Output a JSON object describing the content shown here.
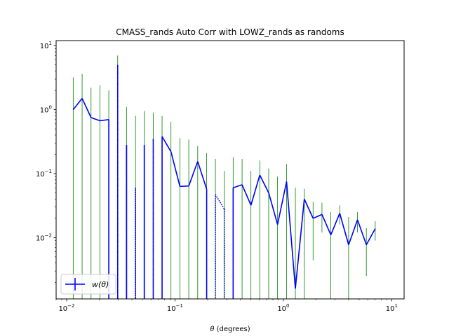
{
  "chart_data": {
    "type": "line",
    "title": "CMASS_rands Auto Corr with LOWZ_rands as randoms",
    "xlabel": "θ (degrees)",
    "ylabel": "",
    "xscale": "log",
    "yscale": "log",
    "xlim": [
      0.008,
      13
    ],
    "ylim": [
      0.0011,
      12
    ],
    "grid": false,
    "legend_position": "lower-left",
    "x_tick_labels": [
      {
        "value": 0.01,
        "base": "10",
        "exp": "−2"
      },
      {
        "value": 0.1,
        "base": "10",
        "exp": "−1"
      },
      {
        "value": 1,
        "base": "10",
        "exp": "0"
      },
      {
        "value": 10,
        "base": "10",
        "exp": "1"
      }
    ],
    "y_tick_labels": [
      {
        "value": 0.01,
        "base": "10",
        "exp": "−2"
      },
      {
        "value": 0.1,
        "base": "10",
        "exp": "−1"
      },
      {
        "value": 1,
        "base": "10",
        "exp": "0"
      },
      {
        "value": 10,
        "base": "10",
        "exp": "1"
      }
    ],
    "series": [
      {
        "name": "w(θ)",
        "color": "#0000ff",
        "errorbar_color": "#008000",
        "points": [
          {
            "x": 0.0115,
            "y": 1.0,
            "ylo": 0.0011,
            "yhi": 3.2
          },
          {
            "x": 0.0139,
            "y": 1.5,
            "ylo": 0.0011,
            "yhi": 3.6
          },
          {
            "x": 0.0168,
            "y": 0.75,
            "ylo": 0.0011,
            "yhi": 2.2
          },
          {
            "x": 0.0203,
            "y": 0.67,
            "ylo": 0.0011,
            "yhi": 2.4
          },
          {
            "x": 0.0245,
            "y": 0.7,
            "ylo": 0.0011,
            "yhi": 2.0
          },
          {
            "x": 0.0296,
            "y": -5.0,
            "ylo": 0.0011,
            "yhi": 7.0
          },
          {
            "x": 0.0357,
            "y": 0.28,
            "ylo": 0.0011,
            "yhi": 1.1
          },
          {
            "x": 0.0432,
            "y": -0.06,
            "ylo": 0.0011,
            "yhi": 0.8
          },
          {
            "x": 0.0521,
            "y": 0.28,
            "ylo": 0.0011,
            "yhi": 0.95
          },
          {
            "x": 0.063,
            "y": -0.35,
            "ylo": 0.0011,
            "yhi": 0.9
          },
          {
            "x": 0.076,
            "y": 0.38,
            "ylo": 0.0011,
            "yhi": 0.8
          },
          {
            "x": 0.0918,
            "y": 0.22,
            "ylo": 0.0011,
            "yhi": 0.65
          },
          {
            "x": 0.111,
            "y": 0.063,
            "ylo": 0.0011,
            "yhi": 0.36
          },
          {
            "x": 0.134,
            "y": 0.064,
            "ylo": 0.0011,
            "yhi": 0.34
          },
          {
            "x": 0.162,
            "y": 0.155,
            "ylo": 0.0011,
            "yhi": 0.27
          },
          {
            "x": 0.196,
            "y": 0.057,
            "ylo": 0.0011,
            "yhi": 0.21
          },
          {
            "x": 0.236,
            "y": -0.047,
            "ylo": 0.0011,
            "yhi": 0.17
          },
          {
            "x": 0.285,
            "y": -0.028,
            "ylo": 0.0011,
            "yhi": 0.11
          },
          {
            "x": 0.344,
            "y": 0.06,
            "ylo": 0.0011,
            "yhi": 0.18
          },
          {
            "x": 0.416,
            "y": 0.067,
            "ylo": 0.0011,
            "yhi": 0.17
          },
          {
            "x": 0.502,
            "y": 0.032,
            "ylo": 0.0011,
            "yhi": 0.11
          },
          {
            "x": 0.606,
            "y": 0.095,
            "ylo": 0.0011,
            "yhi": 0.16
          },
          {
            "x": 0.732,
            "y": 0.05,
            "ylo": 0.0011,
            "yhi": 0.12
          },
          {
            "x": 0.884,
            "y": 0.016,
            "ylo": 0.0011,
            "yhi": 0.09
          },
          {
            "x": 1.07,
            "y": 0.075,
            "ylo": 0.0011,
            "yhi": 0.14
          },
          {
            "x": 1.29,
            "y": 0.0016,
            "ylo": 0.0011,
            "yhi": 0.06
          },
          {
            "x": 1.56,
            "y": 0.04,
            "ylo": 0.0011,
            "yhi": 0.058
          },
          {
            "x": 1.88,
            "y": 0.02,
            "ylo": 0.0044,
            "yhi": 0.036
          },
          {
            "x": 2.27,
            "y": 0.023,
            "ylo": 0.012,
            "yhi": 0.035
          },
          {
            "x": 2.74,
            "y": 0.011,
            "ylo": 0.0011,
            "yhi": 0.025
          },
          {
            "x": 3.31,
            "y": 0.024,
            "ylo": 0.016,
            "yhi": 0.032
          },
          {
            "x": 4.0,
            "y": 0.0077,
            "ylo": 0.0011,
            "yhi": 0.021
          },
          {
            "x": 4.83,
            "y": 0.019,
            "ylo": 0.012,
            "yhi": 0.025
          },
          {
            "x": 5.83,
            "y": 0.0077,
            "ylo": 0.0025,
            "yhi": 0.014
          },
          {
            "x": 7.04,
            "y": 0.0138,
            "ylo": 0.009,
            "yhi": 0.018
          }
        ]
      }
    ]
  }
}
